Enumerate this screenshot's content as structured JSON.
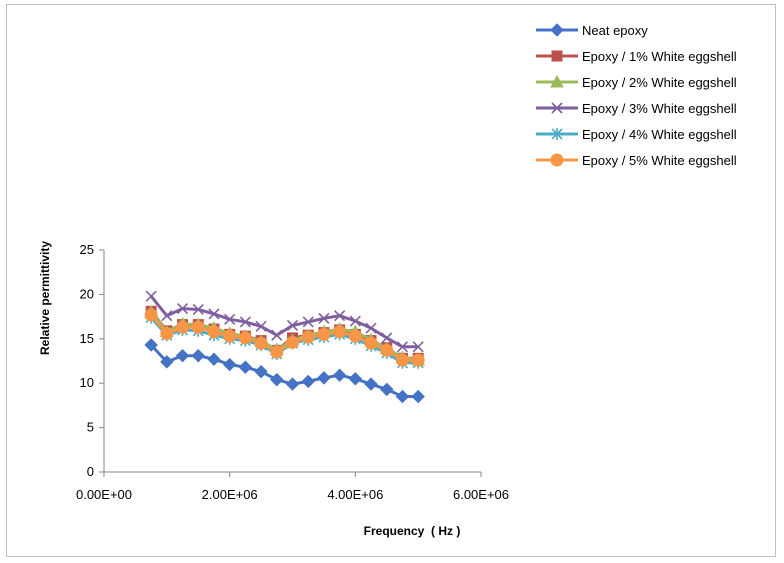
{
  "chart_data": {
    "type": "line",
    "title": "",
    "xlabel": "Frequency  ( Hz )",
    "ylabel": "Relative permittivity",
    "xlim": [
      0,
      6000000
    ],
    "ylim": [
      0,
      25
    ],
    "xticks": [
      0,
      2000000,
      4000000,
      6000000
    ],
    "xtick_labels": [
      "0.00E+00",
      "2.00E+06",
      "4.00E+06",
      "6.00E+06"
    ],
    "yticks": [
      0,
      5,
      10,
      15,
      20,
      25
    ],
    "ytick_labels": [
      "0",
      "5",
      "10",
      "15",
      "20",
      "25"
    ],
    "grid": false,
    "legend_position": "top-right",
    "x": [
      750000,
      1000000,
      1250000,
      1500000,
      1750000,
      2000000,
      2250000,
      2500000,
      2750000,
      3000000,
      3250000,
      3500000,
      3750000,
      4000000,
      4250000,
      4500000,
      4750000,
      5000000
    ],
    "series": [
      {
        "name": "Neat epoxy",
        "color": "#4472C4",
        "marker": "diamond",
        "values": [
          14.3,
          12.4,
          13.1,
          13.1,
          12.7,
          12.1,
          11.8,
          11.3,
          10.4,
          9.9,
          10.2,
          10.6,
          10.9,
          10.5,
          9.9,
          9.3,
          8.5,
          8.5
        ]
      },
      {
        "name": "Epoxy / 1% White eggshell",
        "color": "#C0504D",
        "marker": "square",
        "values": [
          18.1,
          15.9,
          16.6,
          16.6,
          16.1,
          15.5,
          15.3,
          14.8,
          13.7,
          15.1,
          15.4,
          15.7,
          16.0,
          15.5,
          14.8,
          14.0,
          12.8,
          12.8
        ]
      },
      {
        "name": "Epoxy / 2% White eggshell",
        "color": "#9BBB59",
        "marker": "triangle",
        "values": [
          18.0,
          15.8,
          16.7,
          16.6,
          16.2,
          15.6,
          15.3,
          14.7,
          13.8,
          14.8,
          15.4,
          15.8,
          16.1,
          15.8,
          14.9,
          13.9,
          12.9,
          12.6
        ]
      },
      {
        "name": "Epoxy / 3% White eggshell",
        "color": "#7F5F9F",
        "marker": "x",
        "values": [
          19.8,
          17.6,
          18.4,
          18.3,
          17.8,
          17.2,
          16.9,
          16.4,
          15.4,
          16.5,
          16.9,
          17.3,
          17.6,
          17.0,
          16.2,
          15.1,
          14.1,
          14.1
        ]
      },
      {
        "name": "Epoxy / 4% White eggshell",
        "color": "#4BACC6",
        "marker": "star",
        "values": [
          17.4,
          15.4,
          16.0,
          15.9,
          15.4,
          15.0,
          14.8,
          14.3,
          13.3,
          14.5,
          14.9,
          15.2,
          15.5,
          15.0,
          14.2,
          13.4,
          12.3,
          12.3
        ]
      },
      {
        "name": "Epoxy / 5% White eggshell",
        "color": "#F79646",
        "marker": "circle",
        "values": [
          17.7,
          15.6,
          16.3,
          16.3,
          15.8,
          15.3,
          15.1,
          14.5,
          13.5,
          14.6,
          15.2,
          15.5,
          15.8,
          15.3,
          14.5,
          13.7,
          12.6,
          12.6
        ]
      }
    ]
  }
}
